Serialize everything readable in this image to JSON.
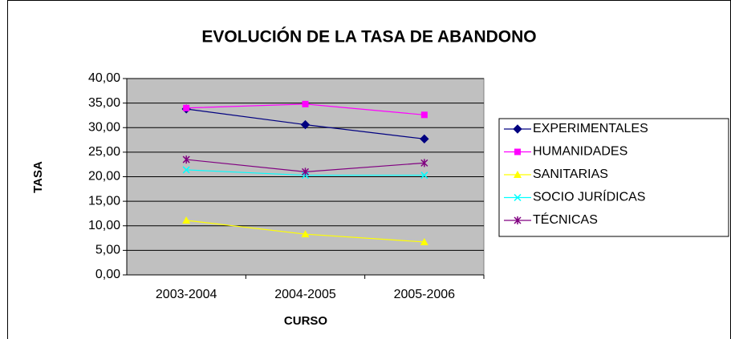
{
  "chart_data": {
    "type": "line",
    "title": "EVOLUCIÓN DE LA TASA DE ABANDONO",
    "x_label": "CURSO",
    "y_label": "TASA",
    "categories": [
      "2003-2004",
      "2004-2005",
      "2005-2006"
    ],
    "series": [
      {
        "name": "EXPERIMENTALES",
        "color": "#000080",
        "marker": "diamond",
        "values": [
          33.8,
          30.6,
          27.7
        ]
      },
      {
        "name": "HUMANIDADES",
        "color": "#ff00ff",
        "marker": "square",
        "values": [
          34.0,
          34.8,
          32.6
        ]
      },
      {
        "name": "SANITARIAS",
        "color": "#ffff00",
        "marker": "triangle",
        "values": [
          11.1,
          8.3,
          6.7
        ]
      },
      {
        "name": "SOCIO JURÍDICAS",
        "color": "#00ffff",
        "marker": "x",
        "values": [
          21.4,
          20.3,
          20.3
        ]
      },
      {
        "name": "TÉCNICAS",
        "color": "#800080",
        "marker": "asterisk",
        "values": [
          23.5,
          21.0,
          22.8
        ]
      }
    ],
    "ylim": [
      0,
      40
    ],
    "yticks": [
      {
        "value": 0,
        "label": "0,00"
      },
      {
        "value": 5,
        "label": "5,00"
      },
      {
        "value": 10,
        "label": "10,00"
      },
      {
        "value": 15,
        "label": "15,00"
      },
      {
        "value": 20,
        "label": "20,00"
      },
      {
        "value": 25,
        "label": "25,00"
      },
      {
        "value": 30,
        "label": "30,00"
      },
      {
        "value": 35,
        "label": "35,00"
      },
      {
        "value": 40,
        "label": "40,00"
      }
    ],
    "grid": true,
    "legend": "right"
  }
}
